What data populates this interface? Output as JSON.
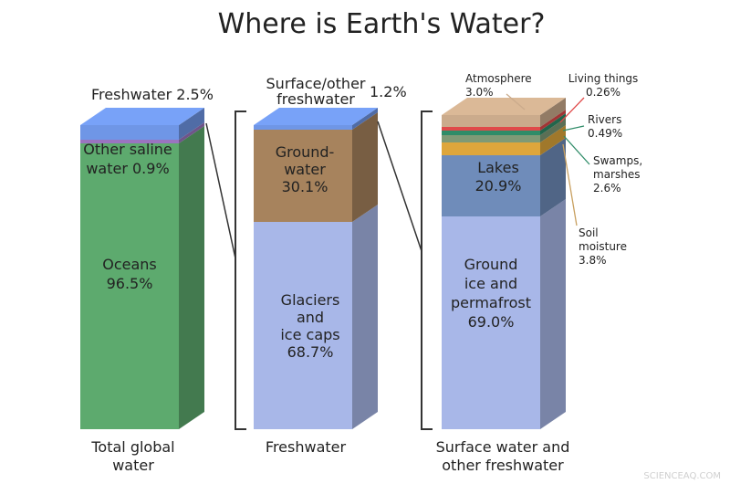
{
  "chart_data": {
    "title": "Where is Earth's Water?",
    "watermark": "SCIENCEAQ.COM",
    "charts": [
      {
        "type": "stacked-bar",
        "xlabel": [
          "Total global",
          "water"
        ],
        "segments": [
          {
            "name": "Oceans",
            "value": 96.5,
            "label": [
              "Oceans",
              "96.5%"
            ],
            "color": "#5daa6e"
          },
          {
            "name": "Other saline water",
            "value": 0.9,
            "label": [
              "Other saline",
              "water 0.9%"
            ],
            "color": "#9a74c0"
          },
          {
            "name": "Freshwater",
            "value": 2.5,
            "label": [
              "Freshwater 2.5%"
            ],
            "color": "#6f96e6"
          }
        ]
      },
      {
        "type": "stacked-bar",
        "xlabel": [
          "Freshwater"
        ],
        "segments": [
          {
            "name": "Glaciers and ice caps",
            "value": 68.7,
            "label": [
              "Glaciers",
              "and",
              "ice caps",
              "68.7%"
            ],
            "color": "#a8b7e8"
          },
          {
            "name": "Groundwater",
            "value": 30.1,
            "label": [
              "Ground-",
              "water",
              "30.1%"
            ],
            "color": "#a7835d"
          },
          {
            "name": "Surface/other freshwater",
            "value": 1.2,
            "label": [
              "Surface/other",
              "freshwater"
            ],
            "value_label": "1.2%",
            "color": "#6f96e6"
          }
        ]
      },
      {
        "type": "stacked-bar",
        "xlabel": [
          "Surface water and",
          "other freshwater"
        ],
        "segments": [
          {
            "name": "Ground ice and permafrost",
            "value": 69.0,
            "label": [
              "Ground",
              "ice and",
              "permafrost",
              "69.0%"
            ],
            "color": "#a8b7e8"
          },
          {
            "name": "Lakes",
            "value": 20.9,
            "label": [
              "Lakes",
              "20.9%"
            ],
            "color": "#6f8cba"
          },
          {
            "name": "Soil moisture",
            "value": 3.8,
            "label": [
              "Soil",
              "moisture",
              "3.8%"
            ],
            "color": "#dea63c"
          },
          {
            "name": "Swamps, marshes",
            "value": 2.6,
            "label": [
              "Swamps,",
              "marshes",
              "2.6%"
            ],
            "color": "#7f9a76"
          },
          {
            "name": "Rivers",
            "value": 0.49,
            "label": [
              "Rivers",
              "0.49%"
            ],
            "color": "#2f8c68"
          },
          {
            "name": "Living things",
            "value": 0.26,
            "label": [
              "Living things",
              "0.26%"
            ],
            "color": "#e04a4a"
          },
          {
            "name": "Atmosphere",
            "value": 3.0,
            "label": [
              "Atmosphere",
              "3.0%"
            ],
            "color": "#cbab8c"
          }
        ]
      }
    ]
  }
}
